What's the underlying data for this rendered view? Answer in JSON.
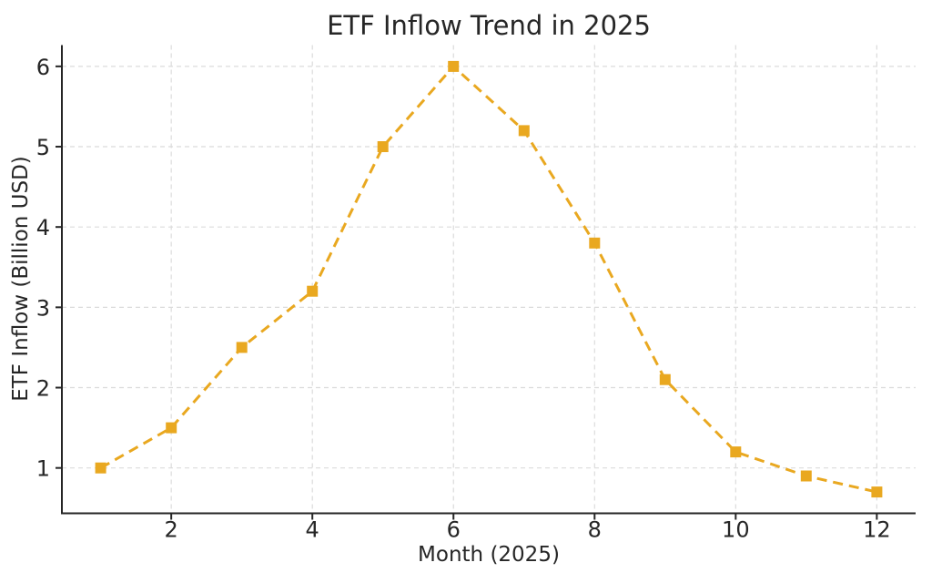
{
  "chart_data": {
    "type": "line",
    "title": "ETF Inflow Trend in 2025",
    "xlabel": "Month (2025)",
    "ylabel": "ETF Inflow (Billion USD)",
    "series": [
      {
        "name": "ETF Inflow",
        "x": [
          1,
          2,
          3,
          4,
          5,
          6,
          7,
          8,
          9,
          10,
          11,
          12
        ],
        "values": [
          1.0,
          1.5,
          2.5,
          3.2,
          5.0,
          6.0,
          5.2,
          3.8,
          2.1,
          1.2,
          0.9,
          0.7
        ]
      }
    ],
    "x_ticks": [
      2,
      4,
      6,
      8,
      10,
      12
    ],
    "y_ticks": [
      1,
      2,
      3,
      4,
      5,
      6
    ],
    "xlim": [
      0.45,
      12.55
    ],
    "ylim": [
      0.435,
      6.265
    ],
    "grid": true,
    "legend_position": "none",
    "line_style": "dashed",
    "marker": "square",
    "colors": {
      "line": "#E9A820",
      "grid": "#DBDBDB",
      "axis": "#262626",
      "text": "#262626",
      "background": "#FFFFFF"
    }
  }
}
